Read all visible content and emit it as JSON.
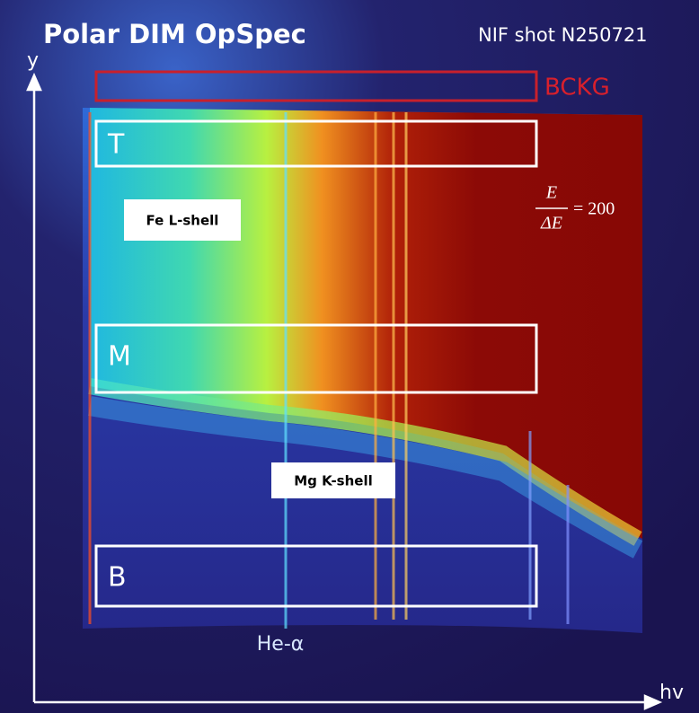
{
  "header": {
    "title": "Polar DIM OpSpec",
    "shot": "NIF shot N250721"
  },
  "axes": {
    "y": "y",
    "x": "hv"
  },
  "regions": {
    "background": "BCKG",
    "top": "T",
    "middle": "M",
    "bottom": "B"
  },
  "annotations": {
    "fe": "Fe L-shell",
    "mg": "Mg K-shell",
    "he": "He-α"
  },
  "resolution": {
    "numerator": "E",
    "denominator": "ΔE",
    "rhs": "= 200"
  }
}
